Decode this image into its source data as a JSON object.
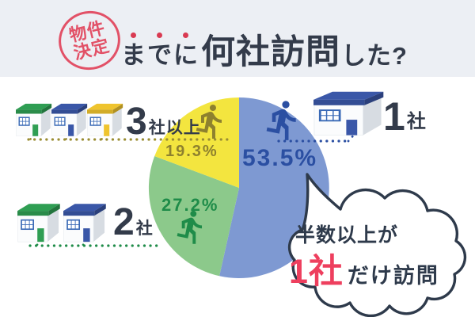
{
  "header": {
    "stamp": {
      "line1": "物件",
      "line2": "決定",
      "color": "#e25167"
    },
    "title": {
      "dotted_chars": [
        "ま",
        "で",
        "に"
      ],
      "main": "何社訪問",
      "suffix": "した?",
      "color": "#333b4a"
    }
  },
  "chart_data": {
    "type": "pie",
    "title": "物件決定までに何社訪問した?",
    "direction": "clockwise",
    "start_angle": "12-oclock",
    "legend_position": "around-pie",
    "slices": [
      {
        "label": "1社",
        "value": 53.5,
        "percent_label": "53.5%",
        "color": "#7e99d2",
        "accent": "#2b4fa2"
      },
      {
        "label": "2社",
        "value": 27.2,
        "percent_label": "27.2%",
        "color": "#8cc98b",
        "accent": "#1f8c49"
      },
      {
        "label": "3社以上",
        "value": 19.3,
        "percent_label": "19.3%",
        "color": "#f3e53f",
        "accent": "#8e812e"
      }
    ],
    "annotation": "半数以上が1社だけ訪問"
  },
  "groups": {
    "one": {
      "digit": "1",
      "suffix": "社",
      "roofs": [
        "#3a57a8"
      ]
    },
    "two": {
      "digit": "2",
      "suffix": "社",
      "roofs": [
        "#2f9e53",
        "#3a57a8"
      ]
    },
    "three_plus": {
      "digit": "3",
      "suffix": "社以上",
      "roofs": [
        "#2f9e53",
        "#3a57a8",
        "#efc42e"
      ]
    }
  },
  "bubble": {
    "line1": "半数以上が",
    "emphasis": "1社",
    "rest": "だけ訪問",
    "emphasis_color": "#ee3f5e",
    "outline_color": "#2e3a4b"
  },
  "icons": {
    "runner": "running-person-icon",
    "house": "house-icon",
    "stamp": "hanko-stamp-icon"
  },
  "colors": {
    "header_background": "#eceff4",
    "body_background": "#ffffff",
    "text_navy": "#333b4a",
    "window_frame": "#3a6ab6"
  }
}
